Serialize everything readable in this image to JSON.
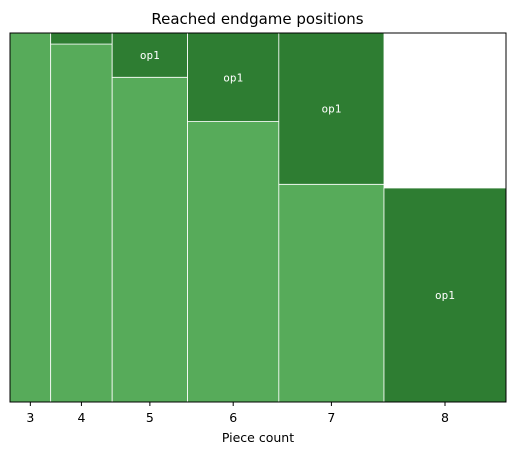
{
  "chart_data": {
    "type": "mosaic",
    "title": "Reached endgame positions",
    "xlabel": "Piece count",
    "ylabel": "",
    "categories": [
      "3",
      "4",
      "5",
      "6",
      "7",
      "8"
    ],
    "widths": [
      0.082,
      0.124,
      0.152,
      0.184,
      0.212,
      0.246
    ],
    "series": [
      {
        "name": "",
        "color": "#57ab5a",
        "values": [
          1.0,
          0.97,
          0.88,
          0.76,
          0.59,
          0.0
        ]
      },
      {
        "name": "op1",
        "color": "#2e7d32",
        "values": [
          0.0,
          0.03,
          0.12,
          0.24,
          0.41,
          0.58
        ]
      }
    ],
    "segment_labels": [
      "",
      "",
      "op1",
      "op1",
      "op1",
      "op1"
    ],
    "ylim": [
      0,
      1
    ],
    "grid": false,
    "legend": "none"
  }
}
